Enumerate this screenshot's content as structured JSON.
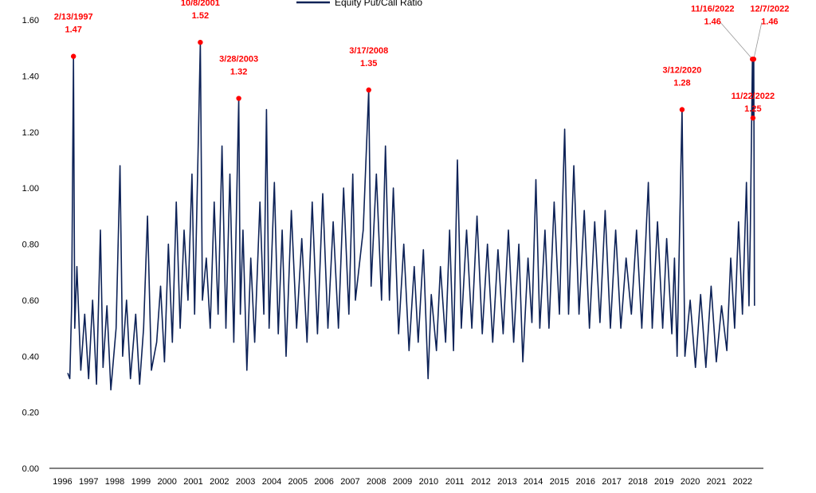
{
  "chart_data": {
    "type": "line",
    "title": "",
    "xlabel": "",
    "ylabel": "",
    "legend": {
      "placement": "top-center",
      "entries": [
        "Equity Put/Call Ratio"
      ]
    },
    "ylim": [
      0,
      1.6
    ],
    "xlim": [
      1996,
      2023.3
    ],
    "grid": false,
    "y_ticks": [
      "0.00",
      "0.20",
      "0.40",
      "0.60",
      "0.80",
      "1.00",
      "1.20",
      "1.40",
      "1.60"
    ],
    "x_ticks": [
      "1996",
      "1997",
      "1998",
      "1999",
      "2000",
      "2001",
      "2002",
      "2003",
      "2004",
      "2005",
      "2006",
      "2007",
      "2008",
      "2009",
      "2010",
      "2011",
      "2012",
      "2013",
      "2014",
      "2015",
      "2016",
      "2017",
      "2018",
      "2019",
      "2020",
      "2021",
      "2022"
    ],
    "colors": {
      "line": "#0d2257",
      "annotation": "#ff0000",
      "axis": "#000000"
    },
    "series": [
      {
        "name": "Equity Put/Call Ratio",
        "points": [
          [
            1996.7,
            0.34
          ],
          [
            1996.78,
            0.32
          ],
          [
            1996.85,
            0.58
          ],
          [
            1996.92,
            1.47
          ],
          [
            1996.97,
            0.5
          ],
          [
            1997.05,
            0.72
          ],
          [
            1997.2,
            0.35
          ],
          [
            1997.35,
            0.55
          ],
          [
            1997.5,
            0.32
          ],
          [
            1997.65,
            0.6
          ],
          [
            1997.8,
            0.3
          ],
          [
            1997.95,
            0.85
          ],
          [
            1998.05,
            0.36
          ],
          [
            1998.2,
            0.58
          ],
          [
            1998.35,
            0.28
          ],
          [
            1998.55,
            0.5
          ],
          [
            1998.7,
            1.08
          ],
          [
            1998.8,
            0.4
          ],
          [
            1998.95,
            0.6
          ],
          [
            1999.1,
            0.32
          ],
          [
            1999.3,
            0.55
          ],
          [
            1999.45,
            0.3
          ],
          [
            1999.6,
            0.5
          ],
          [
            1999.75,
            0.9
          ],
          [
            1999.9,
            0.35
          ],
          [
            2000.1,
            0.45
          ],
          [
            2000.25,
            0.65
          ],
          [
            2000.4,
            0.38
          ],
          [
            2000.55,
            0.8
          ],
          [
            2000.7,
            0.45
          ],
          [
            2000.85,
            0.95
          ],
          [
            2001.0,
            0.5
          ],
          [
            2001.15,
            0.85
          ],
          [
            2001.3,
            0.6
          ],
          [
            2001.45,
            1.05
          ],
          [
            2001.55,
            0.55
          ],
          [
            2001.7,
            1.2
          ],
          [
            2001.77,
            1.52
          ],
          [
            2001.85,
            0.6
          ],
          [
            2002.0,
            0.75
          ],
          [
            2002.15,
            0.5
          ],
          [
            2002.3,
            0.95
          ],
          [
            2002.45,
            0.55
          ],
          [
            2002.6,
            1.15
          ],
          [
            2002.75,
            0.5
          ],
          [
            2002.9,
            1.05
          ],
          [
            2003.05,
            0.45
          ],
          [
            2003.24,
            1.32
          ],
          [
            2003.3,
            0.55
          ],
          [
            2003.4,
            0.85
          ],
          [
            2003.55,
            0.35
          ],
          [
            2003.7,
            0.75
          ],
          [
            2003.85,
            0.45
          ],
          [
            2004.05,
            0.95
          ],
          [
            2004.2,
            0.55
          ],
          [
            2004.3,
            1.28
          ],
          [
            2004.4,
            0.5
          ],
          [
            2004.6,
            1.02
          ],
          [
            2004.75,
            0.48
          ],
          [
            2004.9,
            0.85
          ],
          [
            2005.05,
            0.4
          ],
          [
            2005.25,
            0.92
          ],
          [
            2005.45,
            0.5
          ],
          [
            2005.65,
            0.82
          ],
          [
            2005.85,
            0.45
          ],
          [
            2006.05,
            0.95
          ],
          [
            2006.25,
            0.48
          ],
          [
            2006.45,
            0.98
          ],
          [
            2006.65,
            0.5
          ],
          [
            2006.85,
            0.88
          ],
          [
            2007.05,
            0.5
          ],
          [
            2007.25,
            1.0
          ],
          [
            2007.45,
            0.55
          ],
          [
            2007.6,
            1.05
          ],
          [
            2007.7,
            0.6
          ],
          [
            2008.0,
            0.85
          ],
          [
            2008.21,
            1.35
          ],
          [
            2008.3,
            0.65
          ],
          [
            2008.5,
            1.05
          ],
          [
            2008.7,
            0.6
          ],
          [
            2008.85,
            1.15
          ],
          [
            2009.0,
            0.6
          ],
          [
            2009.15,
            1.0
          ],
          [
            2009.35,
            0.48
          ],
          [
            2009.55,
            0.8
          ],
          [
            2009.75,
            0.42
          ],
          [
            2009.95,
            0.72
          ],
          [
            2010.1,
            0.45
          ],
          [
            2010.3,
            0.78
          ],
          [
            2010.48,
            0.32
          ],
          [
            2010.6,
            0.62
          ],
          [
            2010.8,
            0.42
          ],
          [
            2010.95,
            0.72
          ],
          [
            2011.15,
            0.45
          ],
          [
            2011.3,
            0.85
          ],
          [
            2011.45,
            0.42
          ],
          [
            2011.6,
            1.1
          ],
          [
            2011.75,
            0.5
          ],
          [
            2011.95,
            0.85
          ],
          [
            2012.15,
            0.5
          ],
          [
            2012.35,
            0.9
          ],
          [
            2012.55,
            0.48
          ],
          [
            2012.75,
            0.8
          ],
          [
            2012.95,
            0.45
          ],
          [
            2013.15,
            0.78
          ],
          [
            2013.35,
            0.48
          ],
          [
            2013.55,
            0.85
          ],
          [
            2013.75,
            0.45
          ],
          [
            2013.95,
            0.8
          ],
          [
            2014.1,
            0.38
          ],
          [
            2014.3,
            0.75
          ],
          [
            2014.45,
            0.52
          ],
          [
            2014.6,
            1.03
          ],
          [
            2014.75,
            0.5
          ],
          [
            2014.95,
            0.85
          ],
          [
            2015.1,
            0.5
          ],
          [
            2015.3,
            0.95
          ],
          [
            2015.5,
            0.55
          ],
          [
            2015.7,
            1.21
          ],
          [
            2015.85,
            0.55
          ],
          [
            2016.05,
            1.08
          ],
          [
            2016.25,
            0.55
          ],
          [
            2016.45,
            0.92
          ],
          [
            2016.65,
            0.5
          ],
          [
            2016.85,
            0.88
          ],
          [
            2017.05,
            0.52
          ],
          [
            2017.25,
            0.92
          ],
          [
            2017.45,
            0.5
          ],
          [
            2017.65,
            0.85
          ],
          [
            2017.85,
            0.5
          ],
          [
            2018.05,
            0.75
          ],
          [
            2018.25,
            0.55
          ],
          [
            2018.45,
            0.85
          ],
          [
            2018.65,
            0.5
          ],
          [
            2018.9,
            1.02
          ],
          [
            2019.05,
            0.5
          ],
          [
            2019.25,
            0.88
          ],
          [
            2019.45,
            0.5
          ],
          [
            2019.6,
            0.82
          ],
          [
            2019.8,
            0.48
          ],
          [
            2019.9,
            0.75
          ],
          [
            2020.0,
            0.4
          ],
          [
            2020.19,
            1.28
          ],
          [
            2020.3,
            0.4
          ],
          [
            2020.5,
            0.6
          ],
          [
            2020.7,
            0.36
          ],
          [
            2020.9,
            0.62
          ],
          [
            2021.1,
            0.36
          ],
          [
            2021.3,
            0.65
          ],
          [
            2021.5,
            0.38
          ],
          [
            2021.7,
            0.58
          ],
          [
            2021.9,
            0.42
          ],
          [
            2022.05,
            0.75
          ],
          [
            2022.2,
            0.5
          ],
          [
            2022.35,
            0.88
          ],
          [
            2022.5,
            0.55
          ],
          [
            2022.65,
            1.02
          ],
          [
            2022.75,
            0.58
          ],
          [
            2022.8,
            0.85
          ],
          [
            2022.88,
            1.46
          ],
          [
            2022.9,
            1.25
          ],
          [
            2022.93,
            1.46
          ],
          [
            2022.96,
            0.58
          ]
        ]
      }
    ],
    "annotations": [
      {
        "date": "2/13/1997",
        "value": "1.47",
        "x": 1996.92,
        "y": 1.47
      },
      {
        "date": "10/8/2001",
        "value": "1.52",
        "x": 2001.77,
        "y": 1.52
      },
      {
        "date": "3/28/2003",
        "value": "1.32",
        "x": 2003.24,
        "y": 1.32
      },
      {
        "date": "3/17/2008",
        "value": "1.35",
        "x": 2008.21,
        "y": 1.35
      },
      {
        "date": "3/12/2020",
        "value": "1.28",
        "x": 2020.19,
        "y": 1.28
      },
      {
        "date": "11/16/2022",
        "value": "1.46",
        "x": 2022.88,
        "y": 1.46
      },
      {
        "date": "12/7/2022",
        "value": "1.46",
        "x": 2022.93,
        "y": 1.46
      },
      {
        "date": "11/22/2022",
        "value": "1.25",
        "x": 2022.9,
        "y": 1.25
      }
    ]
  }
}
